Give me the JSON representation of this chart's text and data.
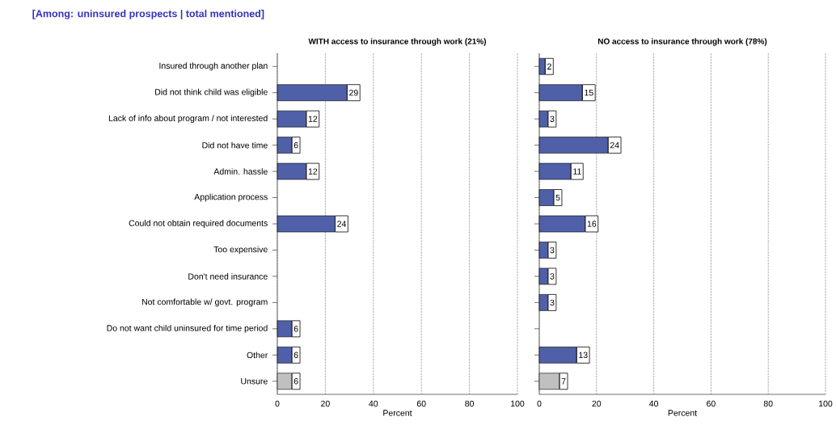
{
  "chart_data": [
    {
      "type": "bar",
      "orientation": "horizontal",
      "title": "[Among: uninsured prospects | total mentioned]",
      "subtitle": "WITH access to insurance through work (21%)",
      "xlabel": "Percent",
      "categories": [
        "Insured through another plan",
        "Did not think child was eligible",
        "Lack of info about program / not interested",
        "Did not have time",
        "Admin. hassle",
        "Application process",
        "Could not obtain required documents",
        "Too expensive",
        "Don't need insurance",
        "Not comfortable w/ govt. program",
        "Do not want child uninsured for time period",
        "Other",
        "Unsure"
      ],
      "values": [
        null,
        29,
        12,
        6,
        12,
        null,
        24,
        null,
        null,
        null,
        6,
        6,
        6
      ],
      "colors": [
        "#5060a8",
        "#5060a8",
        "#5060a8",
        "#5060a8",
        "#5060a8",
        "#5060a8",
        "#5060a8",
        "#5060a8",
        "#5060a8",
        "#5060a8",
        "#5060a8",
        "#5060a8",
        "#c0c0c0"
      ],
      "xlim": [
        0,
        100
      ],
      "xticks": [
        0,
        20,
        40,
        60,
        80,
        100
      ],
      "grid": "x",
      "data_labels": true
    },
    {
      "type": "bar",
      "orientation": "horizontal",
      "title": "NO access to insurance through work (78%)",
      "xlabel": "Percent",
      "categories": [
        null,
        null,
        null,
        null,
        null,
        null,
        null,
        null,
        null,
        null,
        null,
        null,
        null
      ],
      "values": [
        2,
        15,
        3,
        24,
        11,
        5,
        16,
        3,
        3,
        3,
        null,
        13,
        7
      ],
      "colors": [
        "#5060a8",
        "#5060a8",
        "#5060a8",
        "#5060a8",
        "#5060a8",
        "#5060a8",
        "#5060a8",
        "#5060a8",
        "#5060a8",
        "#5060a8",
        "#5060a8",
        "#5060a8",
        "#c0c0c0"
      ],
      "xlim": [
        0,
        100
      ],
      "xticks": [
        0,
        20,
        40,
        60,
        80,
        100
      ],
      "grid": "x",
      "data_labels": true,
      "tick_labels": "x"
    }
  ]
}
